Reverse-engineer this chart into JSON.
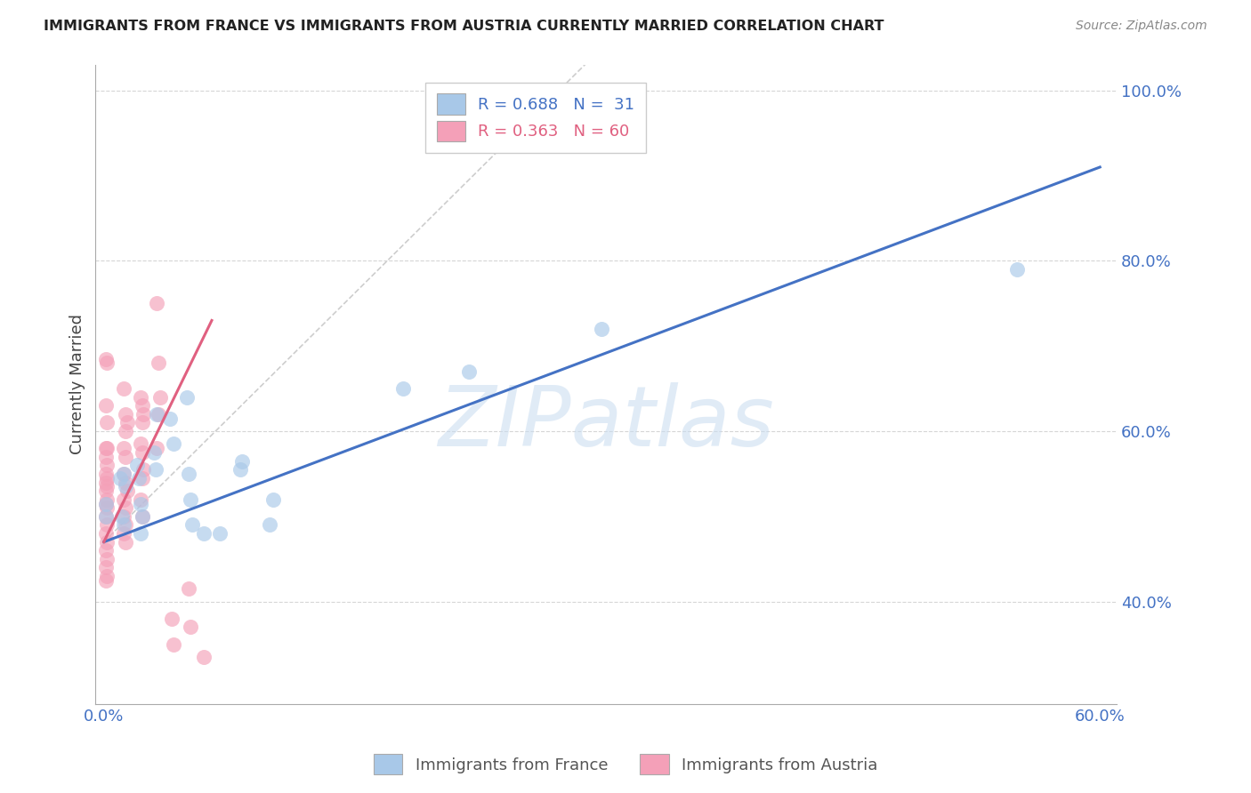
{
  "title": "IMMIGRANTS FROM FRANCE VS IMMIGRANTS FROM AUSTRIA CURRENTLY MARRIED CORRELATION CHART",
  "source": "Source: ZipAtlas.com",
  "xlabel_france": "Immigrants from France",
  "xlabel_austria": "Immigrants from Austria",
  "ylabel": "Currently Married",
  "xlim": [
    -0.005,
    0.61
  ],
  "ylim": [
    0.28,
    1.03
  ],
  "xticks": [
    0.0,
    0.1,
    0.2,
    0.3,
    0.4,
    0.5,
    0.6
  ],
  "xtick_labels": [
    "0.0%",
    "",
    "",
    "",
    "",
    "",
    "60.0%"
  ],
  "yticks": [
    0.4,
    0.6,
    0.8,
    1.0
  ],
  "ytick_labels": [
    "40.0%",
    "60.0%",
    "80.0%",
    "100.0%"
  ],
  "france_color": "#A8C8E8",
  "austria_color": "#F4A0B8",
  "france_line_color": "#4472C4",
  "austria_line_color": "#E06080",
  "france_scatter": [
    [
      0.001,
      0.515
    ],
    [
      0.001,
      0.5
    ],
    [
      0.01,
      0.545
    ],
    [
      0.012,
      0.55
    ],
    [
      0.013,
      0.535
    ],
    [
      0.011,
      0.5
    ],
    [
      0.012,
      0.49
    ],
    [
      0.02,
      0.56
    ],
    [
      0.021,
      0.545
    ],
    [
      0.022,
      0.515
    ],
    [
      0.023,
      0.5
    ],
    [
      0.022,
      0.48
    ],
    [
      0.03,
      0.575
    ],
    [
      0.031,
      0.555
    ],
    [
      0.032,
      0.62
    ],
    [
      0.04,
      0.615
    ],
    [
      0.042,
      0.585
    ],
    [
      0.05,
      0.64
    ],
    [
      0.051,
      0.55
    ],
    [
      0.052,
      0.52
    ],
    [
      0.053,
      0.49
    ],
    [
      0.06,
      0.48
    ],
    [
      0.07,
      0.48
    ],
    [
      0.082,
      0.555
    ],
    [
      0.083,
      0.565
    ],
    [
      0.1,
      0.49
    ],
    [
      0.102,
      0.52
    ],
    [
      0.18,
      0.65
    ],
    [
      0.22,
      0.67
    ],
    [
      0.3,
      0.72
    ],
    [
      0.55,
      0.79
    ]
  ],
  "austria_scatter": [
    [
      0.001,
      0.685
    ],
    [
      0.002,
      0.68
    ],
    [
      0.001,
      0.63
    ],
    [
      0.002,
      0.61
    ],
    [
      0.001,
      0.58
    ],
    [
      0.002,
      0.58
    ],
    [
      0.001,
      0.57
    ],
    [
      0.002,
      0.56
    ],
    [
      0.001,
      0.55
    ],
    [
      0.002,
      0.545
    ],
    [
      0.001,
      0.54
    ],
    [
      0.002,
      0.535
    ],
    [
      0.001,
      0.53
    ],
    [
      0.002,
      0.52
    ],
    [
      0.001,
      0.515
    ],
    [
      0.002,
      0.51
    ],
    [
      0.001,
      0.5
    ],
    [
      0.002,
      0.49
    ],
    [
      0.001,
      0.48
    ],
    [
      0.002,
      0.47
    ],
    [
      0.001,
      0.46
    ],
    [
      0.002,
      0.45
    ],
    [
      0.001,
      0.44
    ],
    [
      0.002,
      0.43
    ],
    [
      0.001,
      0.425
    ],
    [
      0.012,
      0.65
    ],
    [
      0.013,
      0.62
    ],
    [
      0.014,
      0.61
    ],
    [
      0.013,
      0.6
    ],
    [
      0.012,
      0.58
    ],
    [
      0.013,
      0.57
    ],
    [
      0.012,
      0.55
    ],
    [
      0.013,
      0.54
    ],
    [
      0.014,
      0.53
    ],
    [
      0.012,
      0.52
    ],
    [
      0.013,
      0.51
    ],
    [
      0.012,
      0.5
    ],
    [
      0.013,
      0.49
    ],
    [
      0.012,
      0.48
    ],
    [
      0.013,
      0.47
    ],
    [
      0.022,
      0.64
    ],
    [
      0.023,
      0.63
    ],
    [
      0.024,
      0.62
    ],
    [
      0.023,
      0.61
    ],
    [
      0.022,
      0.585
    ],
    [
      0.023,
      0.575
    ],
    [
      0.024,
      0.555
    ],
    [
      0.023,
      0.545
    ],
    [
      0.022,
      0.52
    ],
    [
      0.023,
      0.5
    ],
    [
      0.032,
      0.75
    ],
    [
      0.033,
      0.68
    ],
    [
      0.034,
      0.64
    ],
    [
      0.033,
      0.62
    ],
    [
      0.032,
      0.58
    ],
    [
      0.041,
      0.38
    ],
    [
      0.042,
      0.35
    ],
    [
      0.051,
      0.415
    ],
    [
      0.052,
      0.37
    ],
    [
      0.06,
      0.335
    ]
  ],
  "france_trendline": [
    [
      0.0,
      0.47
    ],
    [
      0.6,
      0.91
    ]
  ],
  "austria_trendline": [
    [
      0.0,
      0.47
    ],
    [
      0.065,
      0.73
    ]
  ],
  "trendline_ext": [
    [
      0.0,
      0.47
    ],
    [
      0.3,
      1.05
    ]
  ],
  "watermark_text": "ZIPatlas",
  "watermark_color": "#C8DCF0"
}
